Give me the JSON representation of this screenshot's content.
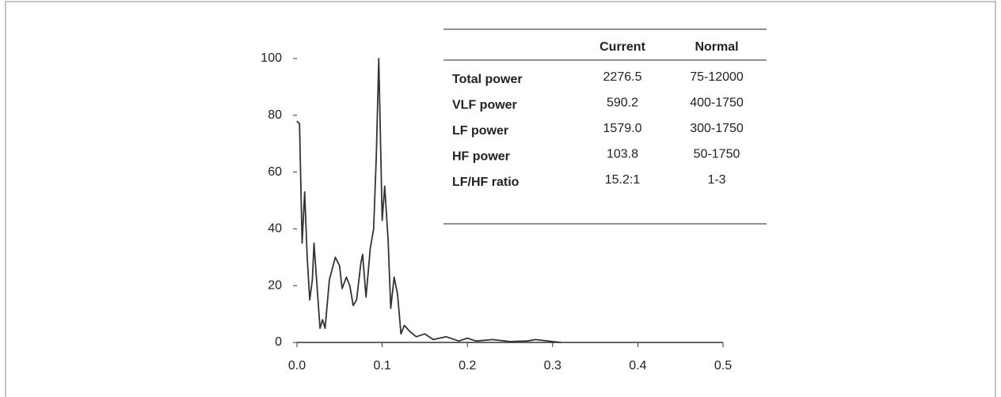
{
  "chart_data": {
    "type": "line",
    "x": [
      0,
      0.003,
      0.006,
      0.009,
      0.012,
      0.015,
      0.018,
      0.02,
      0.024,
      0.027,
      0.03,
      0.033,
      0.038,
      0.045,
      0.05,
      0.053,
      0.058,
      0.062,
      0.066,
      0.07,
      0.075,
      0.077,
      0.081,
      0.086,
      0.09,
      0.093,
      0.096,
      0.1,
      0.103,
      0.107,
      0.11,
      0.114,
      0.118,
      0.122,
      0.126,
      0.132,
      0.14,
      0.15,
      0.16,
      0.175,
      0.19,
      0.2,
      0.21,
      0.23,
      0.25,
      0.27,
      0.28,
      0.3,
      0.31
    ],
    "values": [
      78,
      77,
      35,
      53,
      30,
      15,
      22,
      35,
      18,
      5,
      8,
      5,
      22,
      30,
      27,
      19,
      23,
      20,
      13,
      15,
      28,
      31,
      16,
      33,
      40,
      65,
      100,
      43,
      55,
      36,
      12,
      23,
      17,
      3,
      6,
      4,
      2,
      3,
      1,
      2,
      0.5,
      1.5,
      0.5,
      1,
      0.3,
      0.5,
      1,
      0.3,
      0
    ],
    "color": "#333333",
    "xlim": [
      0,
      0.5
    ],
    "ylim": [
      0,
      100
    ],
    "xticks": [
      {
        "value": 0,
        "label": "0.0"
      },
      0.1,
      0.2,
      0.3,
      0.4,
      0.5
    ],
    "yticks": [
      0,
      20,
      40,
      60,
      80,
      100
    ],
    "grid": false
  },
  "table": {
    "columns": [
      "Current",
      "Normal"
    ],
    "rows": [
      [
        "Total power",
        "2276.5",
        "75-12000"
      ],
      [
        "VLF power",
        "590.2",
        "400-1750"
      ],
      [
        "LF power",
        "1579.0",
        "300-1750"
      ],
      [
        "HF power",
        "103.8",
        "50-1750"
      ],
      [
        "LF/HF ratio",
        "15.2:1",
        "1-3"
      ]
    ]
  }
}
